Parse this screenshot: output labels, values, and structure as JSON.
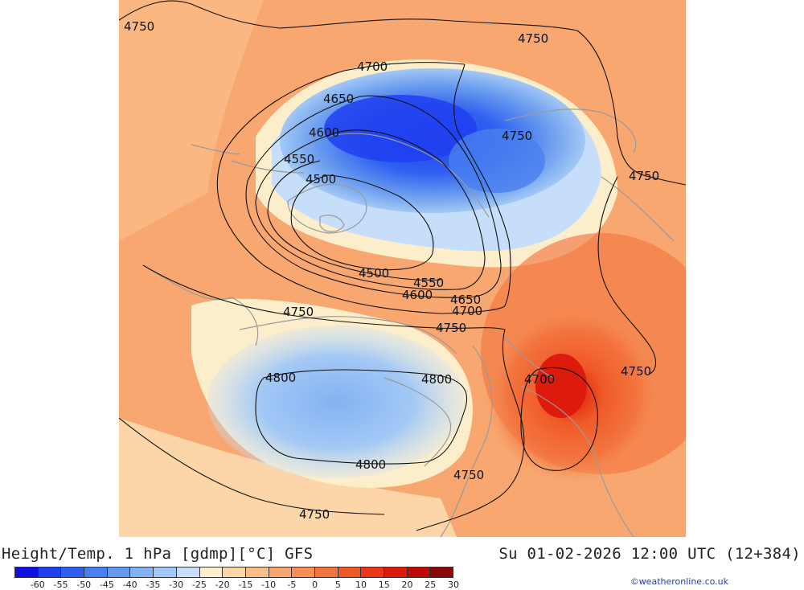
{
  "title": "Height/Temp. 1 hPa [gdmp][°C] GFS",
  "valid_time": "Su 01-02-2026 12:00 UTC (12+384)",
  "credit": "©weatheronline.co.uk",
  "legend": {
    "labels": [
      "-60",
      "-55",
      "-50",
      "-45",
      "-40",
      "-35",
      "-30",
      "-25",
      "-20",
      "-15",
      "-10",
      "-5",
      "0",
      "5",
      "10",
      "15",
      "20",
      "25",
      "30"
    ],
    "colors": [
      "#1010e0",
      "#2040f0",
      "#3060f0",
      "#4a7fef",
      "#6699ee",
      "#84b2f2",
      "#a2c8f5",
      "#c6def9",
      "#fdeecb",
      "#fcd6a8",
      "#fbbe8a",
      "#f8a770",
      "#f58f57",
      "#f37640",
      "#f05a28",
      "#e83818",
      "#dd1b0c",
      "#c00a08",
      "#8a0808"
    ]
  },
  "contours": [
    {
      "label": "4750"
    },
    {
      "label": "4750"
    },
    {
      "label": "4700"
    },
    {
      "label": "4650"
    },
    {
      "label": "4600"
    },
    {
      "label": "4550"
    },
    {
      "label": "4500"
    },
    {
      "label": "4750"
    },
    {
      "label": "4750"
    },
    {
      "label": "4500"
    },
    {
      "label": "4550"
    },
    {
      "label": "4600"
    },
    {
      "label": "4650"
    },
    {
      "label": "4700"
    },
    {
      "label": "4750"
    },
    {
      "label": "4750"
    },
    {
      "label": "4800"
    },
    {
      "label": "4800"
    },
    {
      "label": "4700"
    },
    {
      "label": "4750"
    },
    {
      "label": "4800"
    },
    {
      "label": "4750"
    },
    {
      "label": "4750"
    }
  ]
}
